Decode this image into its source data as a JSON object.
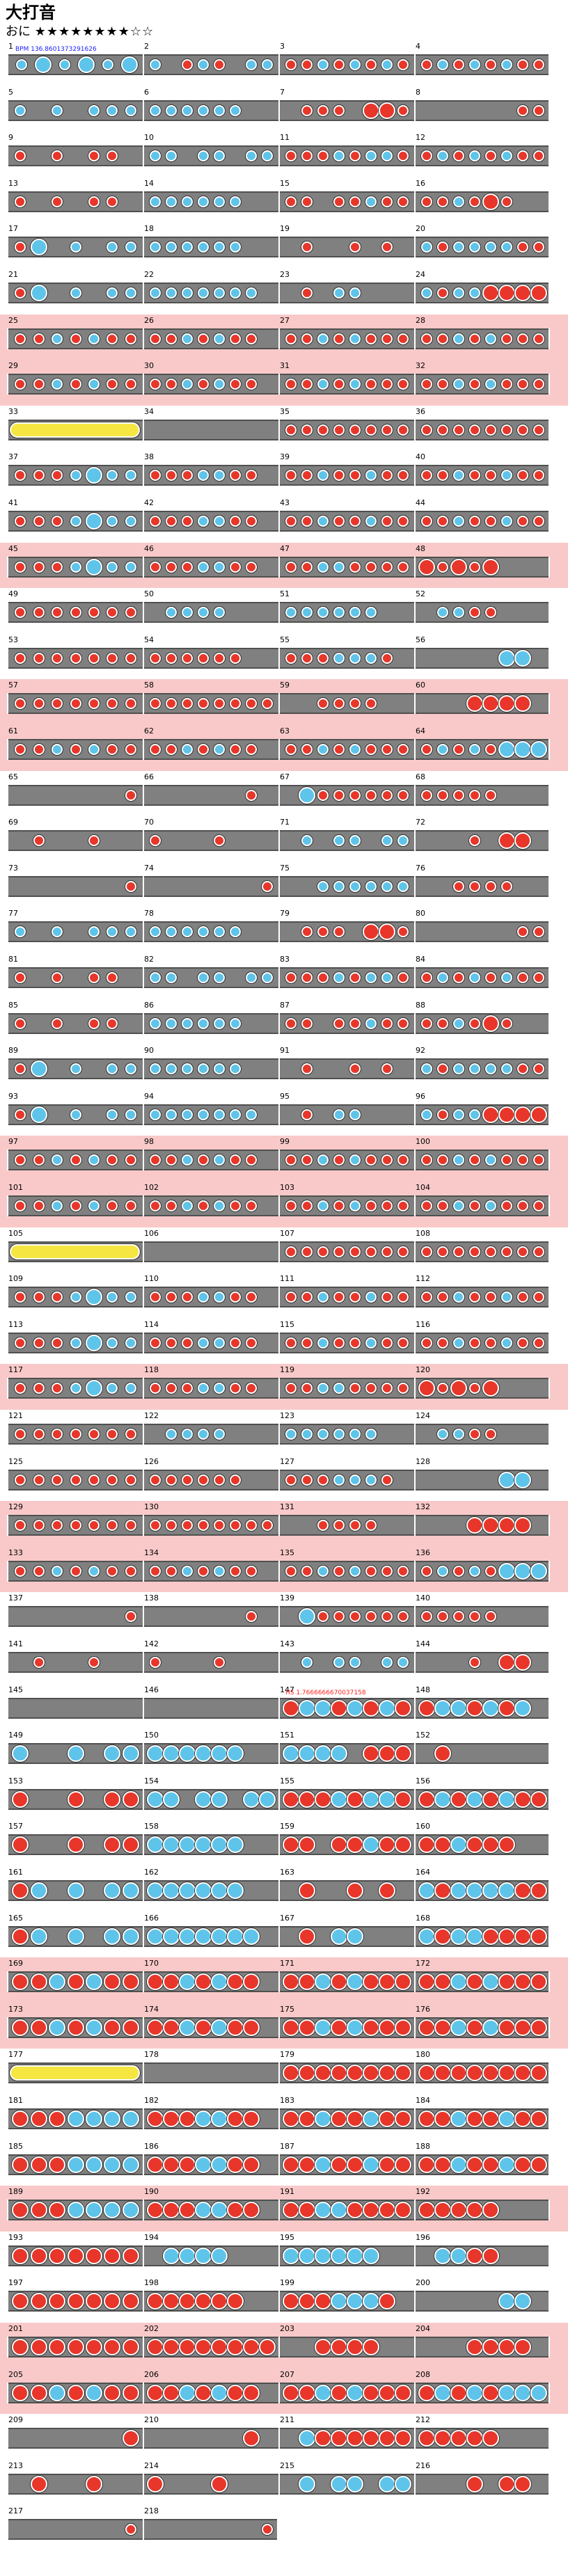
{
  "song": {
    "title": "大打音",
    "difficulty_label": "おに",
    "stars_filled": "★★★★★★★★",
    "stars_empty": "☆☆",
    "level": 8,
    "level_max": 10
  },
  "annotations": {
    "bpm": "BPM 136.8601373291626",
    "hs": "HS 1.7666666670037158"
  },
  "colors": {
    "don": "#e8362a",
    "ka": "#5ec4ea",
    "track": "#808080",
    "gogo": "#f9c9c9",
    "roll": "#f5e642"
  },
  "rows": [
    {
      "gogo": false,
      "measures": [
        1,
        2,
        3,
        4
      ]
    },
    {
      "gogo": false,
      "measures": [
        5,
        6,
        7,
        8
      ]
    },
    {
      "gogo": false,
      "measures": [
        9,
        10,
        11,
        12
      ]
    },
    {
      "gogo": false,
      "measures": [
        13,
        14,
        15,
        16
      ]
    },
    {
      "gogo": false,
      "measures": [
        17,
        18,
        19,
        20
      ]
    },
    {
      "gogo": false,
      "measures": [
        21,
        22,
        23,
        24
      ]
    },
    {
      "gogo": true,
      "measures": [
        25,
        26,
        27,
        28
      ]
    },
    {
      "gogo": true,
      "measures": [
        29,
        30,
        31,
        32
      ]
    },
    {
      "gogo": false,
      "measures": [
        33,
        34,
        35,
        36
      ]
    },
    {
      "gogo": false,
      "measures": [
        37,
        38,
        39,
        40
      ]
    },
    {
      "gogo": false,
      "measures": [
        41,
        42,
        43,
        44
      ]
    },
    {
      "gogo": true,
      "measures": [
        45,
        46,
        47,
        48
      ]
    },
    {
      "gogo": false,
      "measures": [
        49,
        50,
        51,
        52
      ]
    },
    {
      "gogo": false,
      "measures": [
        53,
        54,
        55,
        56
      ]
    },
    {
      "gogo": true,
      "measures": [
        57,
        58,
        59,
        60
      ]
    },
    {
      "gogo": true,
      "measures": [
        61,
        62,
        63,
        64
      ]
    },
    {
      "gogo": false,
      "measures": [
        65,
        66,
        67,
        68
      ]
    },
    {
      "gogo": false,
      "measures": [
        69,
        70,
        71,
        72
      ]
    },
    {
      "gogo": false,
      "measures": [
        73,
        74,
        75,
        76
      ]
    },
    {
      "gogo": false,
      "measures": [
        77,
        78,
        79,
        80
      ]
    },
    {
      "gogo": false,
      "measures": [
        81,
        82,
        83,
        84
      ]
    },
    {
      "gogo": false,
      "measures": [
        85,
        86,
        87,
        88
      ]
    },
    {
      "gogo": false,
      "measures": [
        89,
        90,
        91,
        92
      ]
    },
    {
      "gogo": false,
      "measures": [
        93,
        94,
        95,
        96
      ]
    },
    {
      "gogo": true,
      "measures": [
        97,
        98,
        99,
        100
      ]
    },
    {
      "gogo": true,
      "measures": [
        101,
        102,
        103,
        104
      ]
    },
    {
      "gogo": false,
      "measures": [
        105,
        106,
        107,
        108
      ]
    },
    {
      "gogo": false,
      "measures": [
        109,
        110,
        111,
        112
      ]
    },
    {
      "gogo": false,
      "measures": [
        113,
        114,
        115,
        116
      ]
    },
    {
      "gogo": true,
      "measures": [
        117,
        118,
        119,
        120
      ]
    },
    {
      "gogo": false,
      "measures": [
        121,
        122,
        123,
        124
      ]
    },
    {
      "gogo": false,
      "measures": [
        125,
        126,
        127,
        128
      ]
    },
    {
      "gogo": true,
      "measures": [
        129,
        130,
        131,
        132
      ]
    },
    {
      "gogo": true,
      "measures": [
        133,
        134,
        135,
        136
      ]
    },
    {
      "gogo": false,
      "measures": [
        137,
        138,
        139,
        140
      ]
    },
    {
      "gogo": false,
      "measures": [
        141,
        142,
        143,
        144
      ]
    },
    {
      "gogo": false,
      "measures": [
        145,
        146,
        147,
        148
      ]
    },
    {
      "gogo": false,
      "measures": [
        149,
        150,
        151,
        152
      ]
    },
    {
      "gogo": false,
      "measures": [
        153,
        154,
        155,
        156
      ]
    },
    {
      "gogo": false,
      "measures": [
        157,
        158,
        159,
        160
      ]
    },
    {
      "gogo": false,
      "measures": [
        161,
        162,
        163,
        164
      ]
    },
    {
      "gogo": false,
      "measures": [
        165,
        166,
        167,
        168
      ]
    },
    {
      "gogo": true,
      "measures": [
        169,
        170,
        171,
        172
      ]
    },
    {
      "gogo": true,
      "measures": [
        173,
        174,
        175,
        176
      ]
    },
    {
      "gogo": false,
      "measures": [
        177,
        178,
        179,
        180
      ]
    },
    {
      "gogo": false,
      "measures": [
        181,
        182,
        183,
        184
      ]
    },
    {
      "gogo": false,
      "measures": [
        185,
        186,
        187,
        188
      ]
    },
    {
      "gogo": true,
      "measures": [
        189,
        190,
        191,
        192
      ]
    },
    {
      "gogo": false,
      "measures": [
        193,
        194,
        195,
        196
      ]
    },
    {
      "gogo": false,
      "measures": [
        197,
        198,
        199,
        200
      ]
    },
    {
      "gogo": true,
      "measures": [
        201,
        202,
        203,
        204
      ]
    },
    {
      "gogo": true,
      "measures": [
        205,
        206,
        207,
        208
      ]
    },
    {
      "gogo": false,
      "measures": [
        209,
        210,
        211,
        212
      ]
    },
    {
      "gogo": false,
      "measures": [
        213,
        214,
        215,
        216
      ]
    },
    {
      "gogo": false,
      "measures": [
        217,
        218
      ]
    }
  ],
  "notes": [
    "kKkKkK|k.dkd.kk|ddkdkdkd|dkdkdkdd",
    "k.k.kkk|kkkkkk..|.ddd.DDd|......dd",
    "d.d.dd.|kk.kk.kk|dddkdkkd|dkdkdkdd",
    "d.d.dd.|kkkkkk..|dd.ddkdd|ddkdDd..",
    "dK.k.kk|kkkkkk..|.d..d.d.|kdkkkkdd",
    "dK.k.kk|kkkkkkk.|.d.kk...|kdkkDDDD",
    "ddkdkdd|ddkdkdd.|ddkdkddd|ddkdkddd",
    "ddkdkdd|ddkdkdd.|ddkdkddd|ddkdkddd",
    "R|.......|dddddddd|dddddddd",
    "dddkKkk|dddkkdd.|ddkddkdd|ddkddkdd",
    "dddkKkk|dddkkdd.|ddkddkdd|ddkddkdd",
    "dddkKkk|dddkkdd.|ddkkdddd|DdDdD...",
    "ddddddd|.kkkk...|kkkkkk..|.kkdd...",
    "ddddddd|dddddd..|dddkkkd.|.....KK.",
    "ddddddd|dddddddd|..dddd..|...DDDD.",
    "ddkdkdd|ddkdkdd.|ddkdkddd|dkdkdKKK",
    "......d|......d.|.Kdddddd|ddddd...",
    ".d..d..|d...d...|.k.kk.kk|...d.DD.",
    "......d|.......d|..kkkkkk|..dddd..",
    "k.k.kkk|kkkkkk..|.ddd.DDd|......dd",
    "d.d.dd.|kk.kk.kk|dddkdkkd|dkdkdkdd",
    "d.d.dd.|kkkkkk..|dd.ddkdd|ddkdDd..",
    "dK.k.kk|kkkkkk..|.d..d.d.|kdkkkkdd",
    "dK.k.kk|kkkkkkk.|.d.kk...|kdkkDDDD",
    "ddkdkdd|ddkdkdd.|ddkdkddd|ddkdkddd",
    "ddkdkdd|ddkdkdd.|ddkdkddd|ddkdkddd",
    "R|.......|dddddddd|dddddddd",
    "dddkKkk|dddkkdd.|ddkddkdd|ddkddkdd",
    "dddkKkk|dddkkdd.|ddkddkdd|ddkddkdd",
    "dddkKkk|dddkkdd.|ddkkdddd|DdDdD...",
    "ddddddd|.kkkk...|kkkkkk..|.kkdd...",
    "ddddddd|dddddd..|dddkkkd.|.....KK.",
    "ddddddd|dddddddd|..dddd..|...DDDD.",
    "ddkdkdd|ddkdkdd.|ddkdkddd|dkdkdKKK",
    "......d|......d.|.Kdddddd|ddddd...",
    ".d..d..|d...d...|.k.kk.kk|...d.DD.",
    ".......|........|DKKDKDKD|DKKDKDK.",
    "K..K.KK|KKKKKK..|KKKK.DDD|.D......",
    "D..D.DD|KK.KK.KK|DDDKDKKD|DKDKDKDD",
    "D..D.DD|KKKKKK..|DD.DDKDD|DDKDDD..",
    "DK.K.KK|KKKKKK..|.D..D.D.|KDKKKKDD",
    "DK.K.KK|KKKKKKK.|.D.KK...|KDKKDDDD",
    "DDKDKDD|DDKDKDD.|DDKDKDDD|DDKDKDDD",
    "DDKDKDD|DDKDKDD.|DDKDKDDD|DDKDKDDD",
    "R|.......|DDDDDDDD|DDDDDDDD",
    "DDDKKKK|DDDKKDD.|DDKDDKDD|DDKDDKDD",
    "DDDKKKK|DDDKKDD.|DDKDDKDD|DDKDDKDD",
    "DDDKKKK|DDDKKDD.|DDKKDDDD|DDDDD...",
    "DDDDDDD|.KKKK...|KKKKKK..|.KKDD...",
    "DDDDDDD|DDDDDD..|DDDKKKD.|.....KK.",
    "DDDDDDD|DDDDDDDD|..DDDD..|...DDDD.",
    "DDKDKDD|DDKDKDD.|DDKDKDDD|DKDKDKKK",
    "......D|......D.|.KDDDDDD|DDDDD...",
    ".D..D..|D...D...|.K.KK.KK|...D.DD.",
    "......d|.......d"
  ]
}
